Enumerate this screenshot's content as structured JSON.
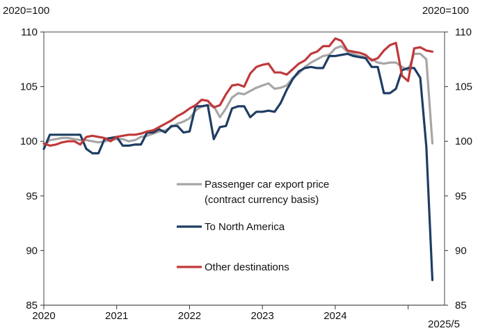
{
  "chart_data": {
    "type": "line",
    "unit_left": "2020=100",
    "unit_right": "2020=100",
    "y_ticks": [
      "110",
      "105",
      "100",
      "95",
      "90",
      "85"
    ],
    "ylim": [
      85,
      110
    ],
    "x_range": [
      2020.0,
      2025.5
    ],
    "x_ticks": [
      {
        "label": "2020",
        "value": 2020.0
      },
      {
        "label": "2021",
        "value": 2021.0
      },
      {
        "label": "2022",
        "value": 2022.0
      },
      {
        "label": "2023",
        "value": 2023.0
      },
      {
        "label": "2024",
        "value": 2024.0
      }
    ],
    "last_label": "2025/5",
    "legend": [
      {
        "lines": [
          "Passenger car export price",
          "(contract currency basis)"
        ],
        "color": "#a6a6a6",
        "series_index": 0
      },
      {
        "lines": [
          "To North America"
        ],
        "color": "#1f3d63",
        "series_index": 1
      },
      {
        "lines": [
          "Other destinations"
        ],
        "color": "#c0393b",
        "series_index": 2
      }
    ],
    "x": [
      2020.0,
      2020.083,
      2020.167,
      2020.25,
      2020.333,
      2020.417,
      2020.5,
      2020.583,
      2020.667,
      2020.75,
      2020.833,
      2020.917,
      2021.0,
      2021.083,
      2021.167,
      2021.25,
      2021.333,
      2021.417,
      2021.5,
      2021.583,
      2021.667,
      2021.75,
      2021.833,
      2021.917,
      2022.0,
      2022.083,
      2022.167,
      2022.25,
      2022.333,
      2022.417,
      2022.5,
      2022.583,
      2022.667,
      2022.75,
      2022.833,
      2022.917,
      2023.0,
      2023.083,
      2023.167,
      2023.25,
      2023.333,
      2023.417,
      2023.5,
      2023.583,
      2023.667,
      2023.75,
      2023.833,
      2023.917,
      2024.0,
      2024.083,
      2024.167,
      2024.25,
      2024.333,
      2024.417,
      2024.5,
      2024.583,
      2024.667,
      2024.75,
      2024.833,
      2024.917,
      2025.0,
      2025.083,
      2025.167,
      2025.25,
      2025.333
    ],
    "series": [
      {
        "name": "Passenger car export price (contract currency basis)",
        "color": "#a6a6a6",
        "values": [
          99.6,
          100.1,
          100.2,
          100.3,
          100.3,
          100.2,
          100.1,
          100.1,
          100.0,
          99.9,
          100.0,
          100.1,
          100.2,
          100.2,
          100.0,
          100.1,
          100.4,
          100.5,
          100.7,
          100.9,
          101.0,
          101.3,
          101.6,
          101.8,
          102.1,
          102.8,
          103.2,
          103.3,
          103.2,
          102.2,
          103.0,
          104.0,
          104.4,
          104.3,
          104.6,
          104.9,
          105.1,
          105.3,
          104.8,
          104.9,
          105.1,
          105.8,
          106.2,
          106.8,
          107.2,
          107.5,
          107.8,
          107.9,
          108.5,
          108.7,
          108.2,
          108.0,
          107.8,
          107.7,
          107.5,
          107.2,
          107.1,
          107.2,
          107.2,
          106.8,
          106.5,
          108.0,
          108.0,
          107.5,
          99.8
        ]
      },
      {
        "name": "To North America",
        "color": "#1f3d63",
        "values": [
          99.3,
          100.6,
          100.6,
          100.6,
          100.6,
          100.6,
          100.6,
          99.3,
          98.9,
          98.9,
          100.2,
          100.3,
          100.4,
          99.6,
          99.6,
          99.7,
          99.7,
          100.8,
          100.8,
          101.1,
          100.8,
          101.4,
          101.4,
          100.8,
          100.9,
          103.2,
          103.2,
          103.3,
          100.2,
          101.3,
          101.4,
          103.0,
          103.2,
          103.2,
          102.2,
          102.7,
          102.7,
          102.8,
          102.7,
          103.5,
          104.7,
          105.7,
          106.4,
          106.7,
          106.8,
          106.7,
          106.7,
          107.8,
          107.8,
          107.9,
          108.0,
          107.8,
          107.7,
          107.6,
          106.8,
          106.8,
          104.4,
          104.4,
          104.8,
          106.5,
          106.7,
          106.7,
          105.8,
          99.5,
          87.3
        ]
      },
      {
        "name": "Other destinations",
        "color": "#c0393b",
        "values": [
          99.8,
          99.6,
          99.7,
          99.9,
          100.0,
          100.0,
          99.7,
          100.4,
          100.5,
          100.4,
          100.3,
          100.0,
          100.4,
          100.5,
          100.6,
          100.6,
          100.7,
          100.9,
          101.0,
          101.3,
          101.6,
          101.9,
          102.3,
          102.6,
          103.0,
          103.3,
          103.8,
          103.7,
          103.1,
          103.3,
          104.3,
          105.1,
          105.2,
          105.0,
          106.2,
          106.8,
          107.0,
          107.1,
          106.3,
          106.3,
          106.1,
          106.6,
          107.1,
          107.4,
          108.0,
          108.2,
          108.7,
          108.7,
          109.4,
          109.2,
          108.3,
          108.2,
          108.1,
          107.9,
          107.4,
          107.6,
          108.3,
          108.8,
          109.0,
          106.0,
          105.5,
          108.5,
          108.6,
          108.3,
          108.2
        ]
      }
    ]
  }
}
